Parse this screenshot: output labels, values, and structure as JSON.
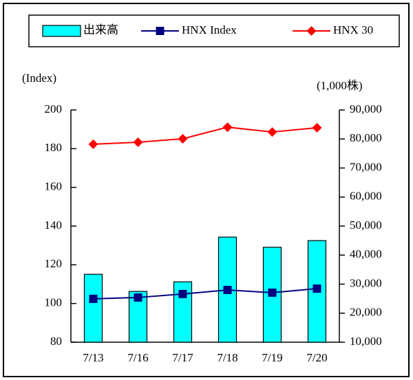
{
  "chart_data": {
    "type": "bar_line",
    "y_label": "(Index)",
    "y2_label": "(1,000株)",
    "categories": [
      "7/13",
      "7/16",
      "7/17",
      "7/18",
      "7/19",
      "7/20"
    ],
    "series": [
      {
        "name": "出来高",
        "type": "bar",
        "axis": "y2",
        "color": "#00ffff",
        "values": [
          33400,
          27500,
          30800,
          46200,
          42700,
          45000
        ]
      },
      {
        "name": "HNX Index",
        "type": "line",
        "marker": "square",
        "color": "#000080",
        "values": [
          102.4,
          103.1,
          104.9,
          107.0,
          105.6,
          107.7
        ]
      },
      {
        "name": "HNX 30",
        "type": "line",
        "marker": "diamond",
        "color": "#ff0000",
        "values": [
          182.3,
          183.3,
          185.1,
          191.1,
          188.6,
          190.8
        ]
      }
    ],
    "ylim": [
      80,
      200
    ],
    "yticks": [
      80,
      100,
      120,
      140,
      160,
      180,
      200
    ],
    "y2lim": [
      10000,
      90000
    ],
    "y2ticks": [
      {
        "value": 10000,
        "label": "10,000"
      },
      {
        "value": 20000,
        "label": "20,000"
      },
      {
        "value": 30000,
        "label": "30,000"
      },
      {
        "value": 40000,
        "label": "40,000"
      },
      {
        "value": 50000,
        "label": "50,000"
      },
      {
        "value": 60000,
        "label": "60,000"
      },
      {
        "value": 70000,
        "label": "70,000"
      },
      {
        "value": 80000,
        "label": "80,000"
      },
      {
        "value": 90000,
        "label": "90,000"
      }
    ],
    "legend": "top"
  }
}
